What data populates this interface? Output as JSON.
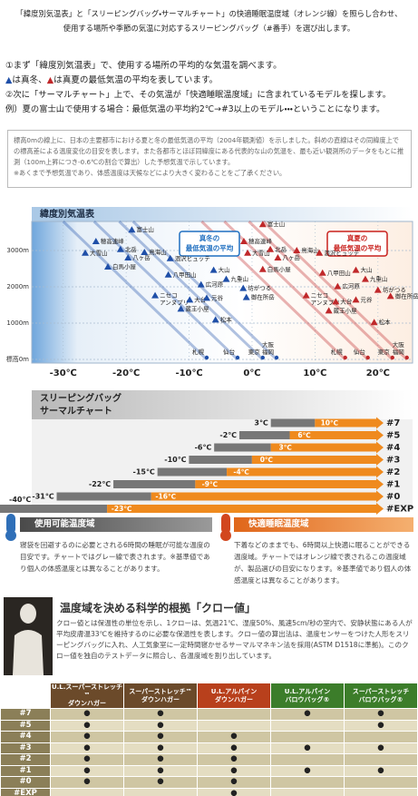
{
  "header": {
    "lines": [
      "「緯度別気温表」と「スリーピングバッグ・サーマルチャート」の快適睡眠温度域（オレンジ線）を照らし合わせ、",
      "使用する場所や季節の気温に対応するスリーピングバッグ（#番手）を選び出します。"
    ]
  },
  "steps": {
    "step1": "①まず「緯度別気温表」で、使用する場所の平均的な気温を調べます。",
    "legend_parts": [
      "▲",
      "は真冬、",
      "▲",
      "は真夏の最低気温の平均を表しています。"
    ],
    "step2": "②次に「サーマルチャート」上で、その気温が「快適睡眠温度域」に含まれているモデルを探します。",
    "example": "例）夏の富士山で使用する場合：最低気温の平均約2℃→#3以上のモデル・・・ということになります。"
  },
  "note": {
    "lines": [
      "標高0mの線上に、日本の主要都市における夏と冬の最低気温の平均（2004年観測値）を示しました。斜めの直線はその同緯度上での標高差による温度変化の目安を表します。また各都市とほぼ同緯度にある代表的な山の気温を、最も近い観測所のデータをもとに推測（100m上昇につき-0.6℃の割合で算出）した予想気温で示しています。",
      "※あくまで予想気温であり、体感温度は天候などにより大きく変わることをご了承ください。"
    ]
  },
  "chart_data": [
    {
      "type": "scatter",
      "title": "緯度別気温表",
      "xlim": [
        -35,
        25.5
      ],
      "ylim": [
        -100,
        3800
      ],
      "xticks": [
        {
          "value": -30,
          "label": "-30℃"
        },
        {
          "value": -20,
          "label": "-20℃"
        },
        {
          "value": -10,
          "label": "-10℃"
        },
        {
          "value": 0,
          "label": "0℃"
        },
        {
          "value": 10,
          "label": "10℃"
        },
        {
          "value": 20,
          "label": "20℃"
        }
      ],
      "yticks": [
        {
          "value": 0,
          "label": "標高0m"
        },
        {
          "value": 1000,
          "label": "1000m"
        },
        {
          "value": 2000,
          "label": "2000m"
        },
        {
          "value": 3000,
          "label": "3000m"
        }
      ],
      "grid": true,
      "annotations": [
        {
          "lines": [
            "真冬の",
            "最低気温の平均"
          ],
          "color": "#1f6fc0"
        },
        {
          "lines": [
            "真夏の",
            "最低気温の平均"
          ],
          "color": "#c8201c"
        }
      ],
      "series": [
        {
          "marker": "triangle",
          "color": "#1f4fa8",
          "labels": [
            "富士山",
            "穂高連峰",
            "北岳",
            "八ヶ岳",
            "大雪山",
            "鳥海山",
            "涸沢ヒュッテ",
            "白馬小屋",
            "八甲田山",
            "大山",
            "九重山",
            "広河原",
            [
              "ニセコ",
              "アンヌプリ"
            ],
            "大台",
            "蔵王小屋",
            "元谷",
            "坊がつる",
            "御在所岳",
            "松本"
          ],
          "x": [
            -19.1,
            -24.8,
            -20.9,
            -19.7,
            -26.5,
            -17.1,
            -13,
            -22.9,
            -13.3,
            -6.1,
            -4.1,
            -8.1,
            -15.4,
            -9.9,
            -11.3,
            -7.2,
            -1.4,
            -0.9,
            -5.8
          ],
          "values": [
            3570,
            3250,
            3030,
            2800,
            2930,
            2950,
            2780,
            2550,
            2330,
            2460,
            2210,
            2060,
            1760,
            1640,
            1390,
            1690,
            1960,
            1710,
            1090
          ]
        },
        {
          "marker": "circle",
          "color": "#1f4fa8",
          "labels": [
            "札幌",
            "仙台",
            "東京",
            [
              "大阪",
              "福岡"
            ]
          ],
          "x": [
            -7.2,
            -2.3,
            1.7,
            3.9
          ],
          "values": [
            0,
            0,
            0,
            0
          ]
        },
        {
          "marker": "triangle",
          "color": "#c0282a",
          "labels": [
            "富士山",
            "穂高連峰",
            "北岳",
            "八ヶ岳",
            "大雪山",
            "鳥海山",
            "涸沢ヒュッテ",
            "白馬小屋",
            "八甲田山",
            "大山",
            "九重山",
            "広河原",
            [
              "ニセコ",
              "アンヌプリ"
            ],
            "大台",
            "蔵王小屋",
            "元谷",
            "坊がつる",
            "御在所岳",
            "松本"
          ],
          "x": [
            1.7,
            -1.3,
            2.9,
            4.1,
            -0.7,
            7.1,
            10.7,
            1.7,
            11.2,
            16.5,
            18,
            13.6,
            8.6,
            13.3,
            12.2,
            16.5,
            20,
            22,
            19.4
          ],
          "values": [
            3720,
            3250,
            3030,
            2800,
            2930,
            3000,
            2930,
            2480,
            2380,
            2460,
            2210,
            2010,
            1760,
            1590,
            1340,
            1640,
            1910,
            1740,
            1020
          ]
        },
        {
          "marker": "circle",
          "color": "#c0282a",
          "labels": [
            "札幌",
            "仙台",
            "東京",
            [
              "大阪",
              "福岡"
            ]
          ],
          "x": [
            14.8,
            18.4,
            22.3,
            24.6
          ],
          "values": [
            0,
            0,
            0,
            0
          ]
        }
      ]
    },
    {
      "type": "range-bar",
      "title": [
        "スリーピングバッグ",
        "サーマルチャート"
      ],
      "xlim": [
        -40,
        25.5
      ],
      "categories": [
        "#7",
        "#5",
        "#4",
        "#3",
        "#2",
        "#1",
        "#0",
        "#EXP"
      ],
      "series": [
        {
          "name": "使用可能温度域",
          "color": "#777777",
          "values": [
            3,
            -2,
            -6,
            -10,
            -15,
            -22,
            -31,
            -40
          ],
          "value_labels": [
            "3℃",
            "-2℃",
            "-6℃",
            "-10℃",
            "-15℃",
            "-22℃",
            "-31℃",
            "-40℃"
          ]
        },
        {
          "name": "快適睡眠温度域",
          "color": "#ef8a1e",
          "values": [
            10,
            6,
            3,
            0,
            -4,
            -9,
            -16,
            -23
          ],
          "value_labels": [
            "10℃",
            "6℃",
            "3℃",
            "0℃",
            "-4℃",
            "-9℃",
            "-16℃",
            "-23℃"
          ]
        }
      ],
      "legend_text": [
        "寝袋を回避するのに必要とされる6時間の睡眠が可能な温度の目安です。チャートではグレー線で表されます。※基準値であり個人の体感温度とは異なることがあります。",
        "下着などのままでも、6時間以上快適に眠ることができる温度域。チャートではオレンジ線で表されるこの温度域が、製品選びの目安になります。※基準値であり個人の体感温度とは異なることがあります。"
      ]
    }
  ],
  "clo": {
    "title": "温度域を決める科学的根拠「クロー値」",
    "text": "クロー値とは保温性の単位を示し、1クローは、気温21℃、湿度50%、風速5cm/秒の室内で、安静状態にある人が平均皮膚温33℃を維持するのに必要な保温性を表します。クロー値の算出法は、温度センサーをつけた人形をスリーピングバッグに入れ、人工気象室に一定時間寝かせるサーマルマネキン法を採用(ASTM D1518に準拠)。このクロー値を独自のテストデータに照合し、各温度域を割り出しています。"
  },
  "table": {
    "columns": [
      {
        "lines": [
          "U.L.スーパーストレッチ™",
          "ダウンハガー"
        ],
        "color": "#6b4a2a"
      },
      {
        "lines": [
          "スーパーストレッチ™",
          "ダウンハガー"
        ],
        "color": "#6b4a2a"
      },
      {
        "lines": [
          "U.L.アルパイン",
          "ダウンハガー"
        ],
        "color": "#b8401c"
      },
      {
        "lines": [
          "U.L.アルパイン",
          "バロウバッグ®"
        ],
        "color": "#3c7d2a"
      },
      {
        "lines": [
          "スーパーストレッチ",
          "バロウバッグ®"
        ],
        "color": "#3c7d2a"
      }
    ],
    "rows": [
      {
        "label": "#7",
        "cells": [
          "●",
          "●",
          null,
          "●",
          "●"
        ]
      },
      {
        "label": "#5",
        "cells": [
          "●",
          "●",
          null,
          null,
          "●"
        ]
      },
      {
        "label": "#4",
        "cells": [
          "●",
          "●",
          "●",
          null,
          null
        ]
      },
      {
        "label": "#3",
        "cells": [
          "●",
          "●",
          "●",
          "●",
          "●"
        ]
      },
      {
        "label": "#2",
        "cells": [
          "●",
          "●",
          "●",
          null,
          null
        ]
      },
      {
        "label": "#1",
        "cells": [
          "●",
          "●",
          "●",
          "●",
          "●"
        ]
      },
      {
        "label": "#0",
        "cells": [
          "●",
          "●",
          "●",
          null,
          null
        ]
      },
      {
        "label": "#EXP",
        "cells": [
          null,
          null,
          "●",
          null,
          null
        ]
      }
    ]
  }
}
